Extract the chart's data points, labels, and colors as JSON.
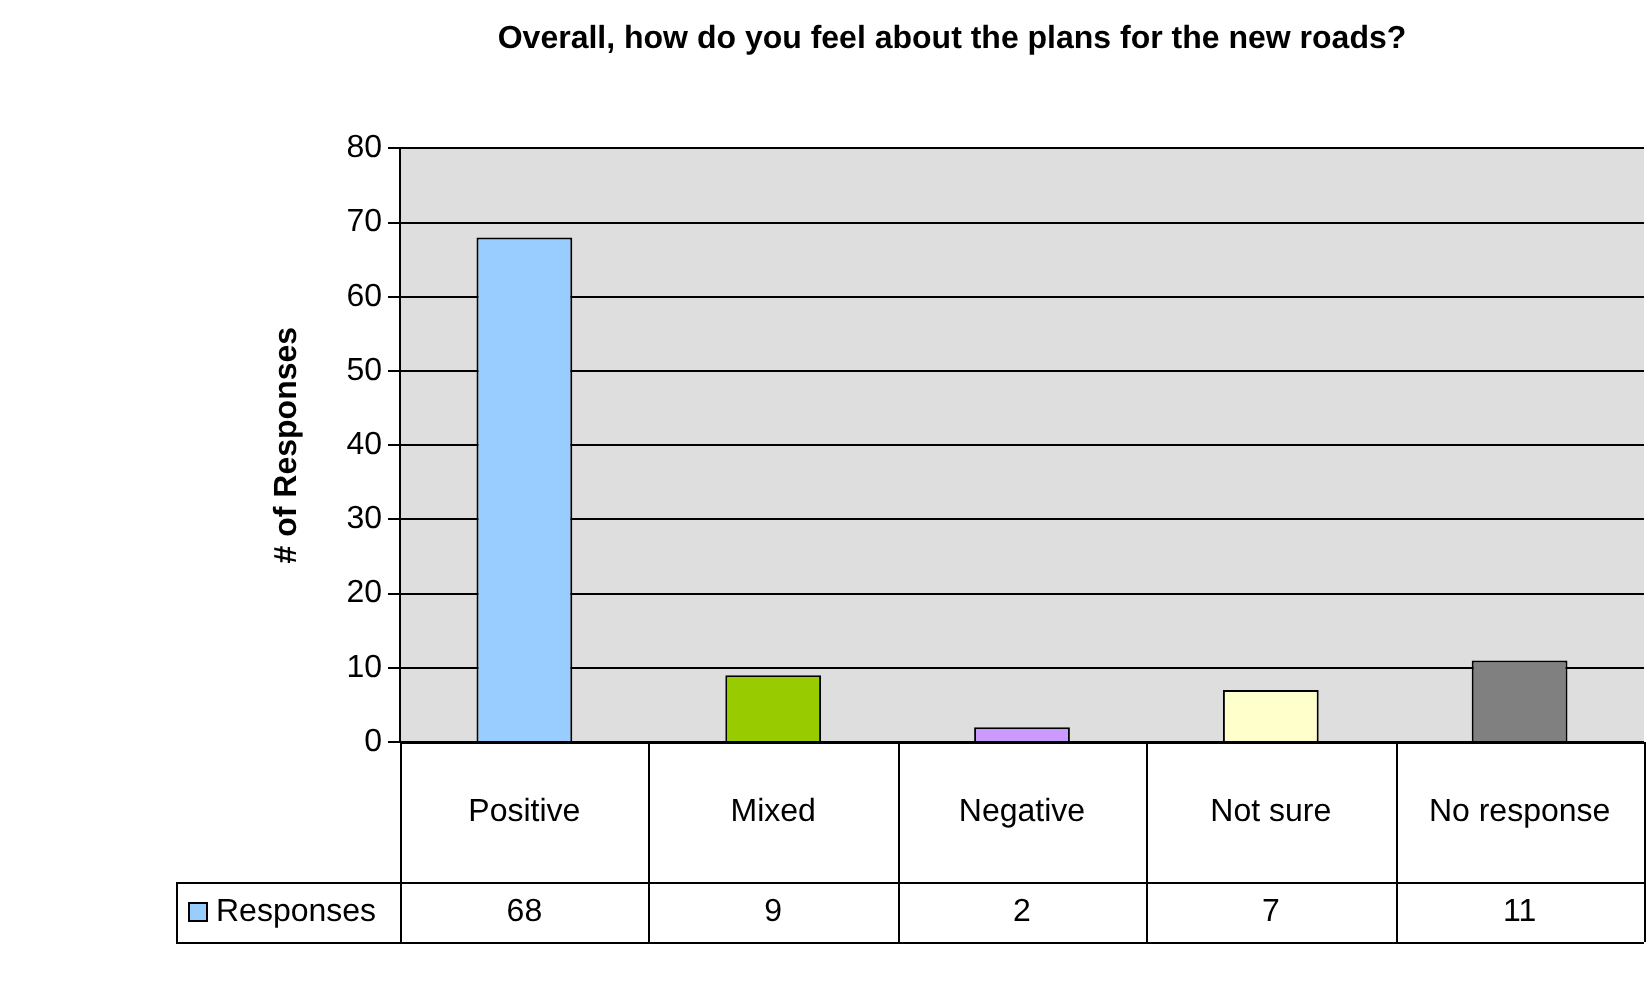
{
  "chart_data": {
    "type": "bar",
    "title": "Overall, how do you feel about the plans for the new roads?",
    "ylabel": "# of Responses",
    "categories": [
      "Positive",
      "Mixed",
      "Negative",
      "Not sure",
      "No response"
    ],
    "series": [
      {
        "name": "Responses",
        "color": "#99ccff",
        "colors": [
          "#99ccff",
          "#99cc00",
          "#cc99ff",
          "#ffffcc",
          "#808080"
        ],
        "values": [
          68,
          9,
          2,
          7,
          11
        ]
      }
    ],
    "ylim": [
      0,
      80
    ],
    "yticks": [
      0,
      10,
      20,
      30,
      40,
      50,
      60,
      70,
      80
    ],
    "grid": "y",
    "legend": "bottom",
    "data_labels": true
  }
}
